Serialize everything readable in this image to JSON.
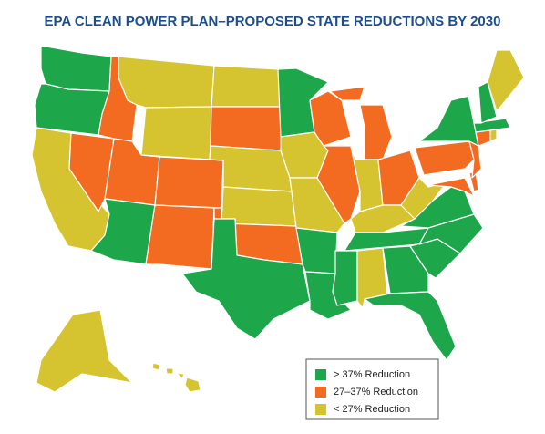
{
  "title": "EPA CLEAN POWER PLAN–PROPOSED STATE REDUCTIONS BY 2030",
  "legend": [
    {
      "label": "> 37% Reduction",
      "color": "#1ea64b"
    },
    {
      "label": "27–37% Reduction",
      "color": "#f26b21"
    },
    {
      "label": "< 27% Reduction",
      "color": "#d5c42f"
    }
  ],
  "regions": [
    0,
    0,
    2,
    1,
    1,
    2,
    2,
    1,
    0,
    1,
    1,
    2,
    1,
    2,
    2,
    1,
    0,
    0,
    2,
    2,
    0,
    0,
    1,
    1,
    1,
    2,
    1,
    2,
    0,
    0,
    2,
    0,
    0,
    0,
    0,
    0,
    2,
    1,
    0,
    1,
    1,
    1,
    1,
    2,
    0,
    null,
    0,
    2,
    2,
    2
  ]
}
